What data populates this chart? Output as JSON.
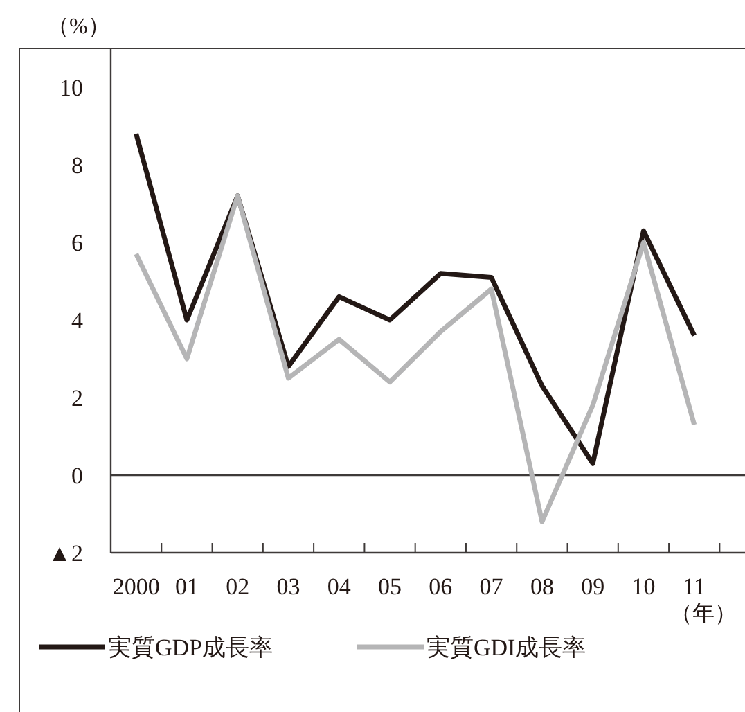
{
  "chart_data": {
    "type": "line",
    "ylabel": "（%）",
    "xlabel": "（年）",
    "categories": [
      "2000",
      "01",
      "02",
      "03",
      "04",
      "05",
      "06",
      "07",
      "08",
      "09",
      "10",
      "11"
    ],
    "series": [
      {
        "name": "実質GDP成長率",
        "color": "#231815",
        "values": [
          8.8,
          4.0,
          7.2,
          2.8,
          4.6,
          4.0,
          5.2,
          5.1,
          2.3,
          0.3,
          6.3,
          3.6
        ]
      },
      {
        "name": "実質GDI成長率",
        "color": "#b5b5b6",
        "values": [
          5.7,
          3.0,
          7.2,
          2.5,
          3.5,
          2.4,
          3.7,
          4.8,
          -1.2,
          1.8,
          6.0,
          1.3
        ]
      }
    ],
    "ylim": [
      -2,
      11
    ],
    "yticks": [
      {
        "value": -2,
        "label": "▲2"
      },
      0,
      2,
      4,
      6,
      8,
      10
    ],
    "ref_lines": [
      {
        "axis": "y",
        "value": 0,
        "color": "#3e3a39"
      }
    ],
    "legend": "bottom",
    "grid": false,
    "marker": "none",
    "line_style": "solid"
  }
}
